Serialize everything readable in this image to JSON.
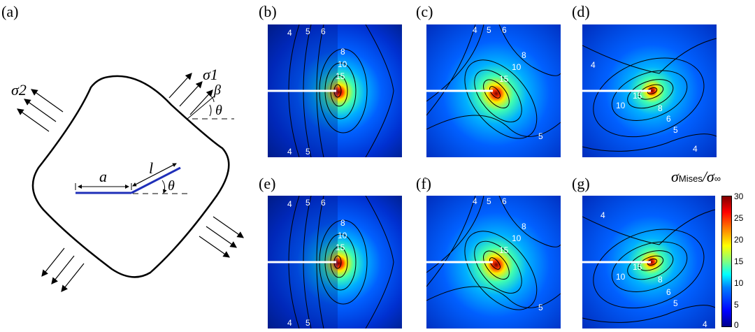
{
  "figure": {
    "schematic": {
      "label": "(a)",
      "sigma1": "σ1",
      "sigma2": "σ2",
      "beta": "β",
      "theta_top": "θ",
      "theta_bottom": "θ",
      "a": "a",
      "l": "l"
    },
    "panels": [
      {
        "label": "(b)",
        "contours": [
          "4",
          "5",
          "6",
          "8",
          "10",
          "15",
          "4",
          "5"
        ]
      },
      {
        "label": "(c)",
        "contours": [
          "4",
          "5",
          "6",
          "8",
          "10",
          "15",
          "5"
        ]
      },
      {
        "label": "(d)",
        "contours": [
          "4",
          "15",
          "10",
          "8",
          "6",
          "5",
          "4"
        ]
      },
      {
        "label": "(e)",
        "contours": [
          "4",
          "5",
          "6",
          "8",
          "10",
          "15",
          "4",
          "5"
        ]
      },
      {
        "label": "(f)",
        "contours": [
          "4",
          "5",
          "6",
          "8",
          "10",
          "15",
          "5"
        ]
      },
      {
        "label": "(g)",
        "contours": [
          "4",
          "15",
          "10",
          "8",
          "6",
          "5",
          "4"
        ]
      }
    ],
    "colorbar": {
      "title_sigma": "σ",
      "title_sub": "Mises",
      "title_slash": "/σ",
      "title_inf": "∞",
      "ticks": [
        "30",
        "25",
        "20",
        "15",
        "10",
        "5",
        "0"
      ]
    }
  }
}
